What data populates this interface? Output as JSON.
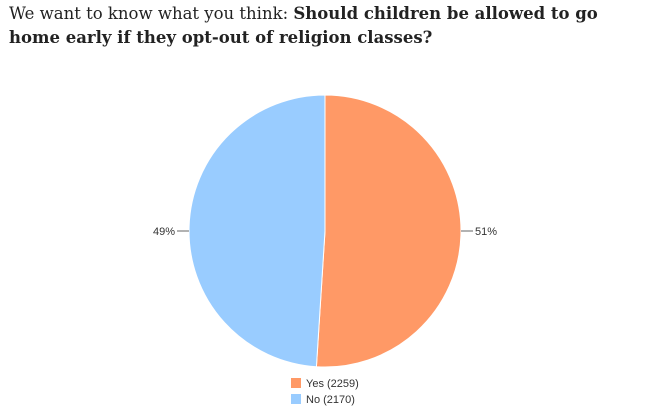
{
  "question": {
    "lead": "We want to know what you think: ",
    "ask": "Should children be allowed to go home early if they opt-out of religion classes?"
  },
  "chart_data": {
    "type": "pie",
    "labels": [
      "Yes",
      "No"
    ],
    "values": [
      2259,
      2170
    ],
    "percent_labels": [
      "51%",
      "49%"
    ],
    "legend": [
      "Yes (2259)",
      "No (2170)"
    ],
    "colors": [
      "#ff9966",
      "#99ccff"
    ],
    "start": "12 o'clock, clockwise",
    "legend_position": "bottom"
  }
}
